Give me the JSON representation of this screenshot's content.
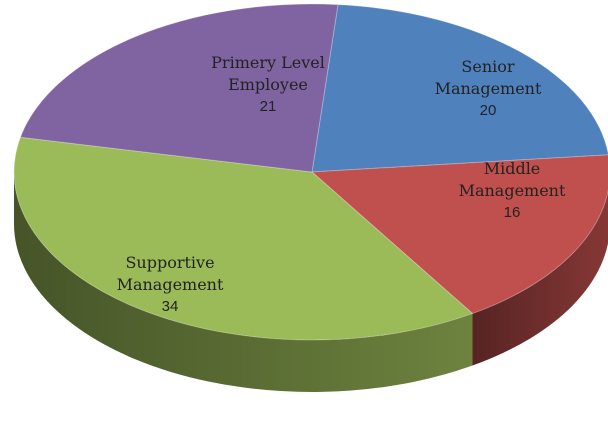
{
  "chart_data": {
    "type": "pie",
    "categories": [
      "Senior Management",
      "Middle Management",
      "Supportive Management",
      "Primery Level Employee"
    ],
    "values": [
      20,
      16,
      34,
      21
    ],
    "colors": [
      "#4f81bd",
      "#c0504d",
      "#9bbb59",
      "#8064a2"
    ]
  }
}
